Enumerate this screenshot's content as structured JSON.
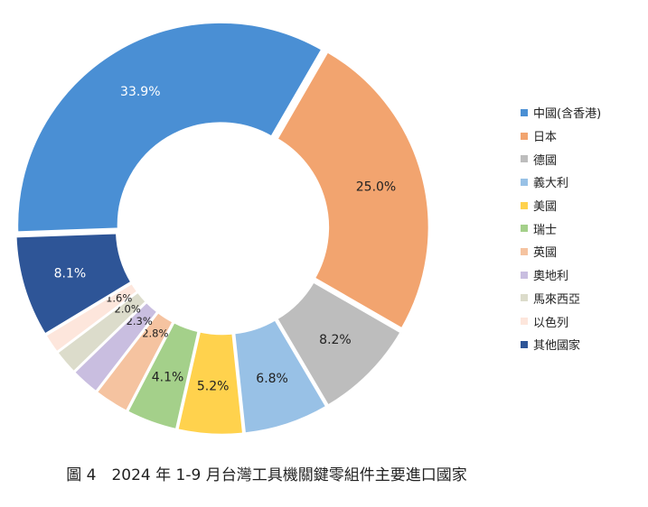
{
  "chart_data": {
    "type": "pie",
    "donut": true,
    "title": "",
    "categories": [
      "中國(含香港)",
      "日本",
      "德國",
      "義大利",
      "美國",
      "瑞士",
      "英國",
      "奧地利",
      "馬來西亞",
      "以色列",
      "其他國家"
    ],
    "values": [
      33.9,
      25.0,
      8.2,
      6.8,
      5.2,
      4.1,
      2.8,
      2.3,
      2.0,
      1.6,
      8.1
    ],
    "data_labels": [
      "33.9%",
      "25.0%",
      "8.2%",
      "6.8%",
      "5.2%",
      "4.1%",
      "2.8%",
      "2.3%",
      "2.0%",
      "1.6%",
      "8.1%"
    ],
    "colors": [
      "#4a8fd4",
      "#f2a46f",
      "#bdbdbd",
      "#98c1e6",
      "#ffd24d",
      "#a4d08a",
      "#f5c3a0",
      "#c9bee0",
      "#dcdccb",
      "#fde6dc",
      "#2e5597"
    ],
    "label_colors": [
      "#ffffff",
      "#222222",
      "#222222",
      "#222222",
      "#222222",
      "#222222",
      "#222222",
      "#222222",
      "#222222",
      "#222222",
      "#ffffff"
    ],
    "legend_position": "right",
    "grid": false
  },
  "caption": "圖 4　2024 年 1-9 月台灣工具機關鍵零組件主要進口國家"
}
